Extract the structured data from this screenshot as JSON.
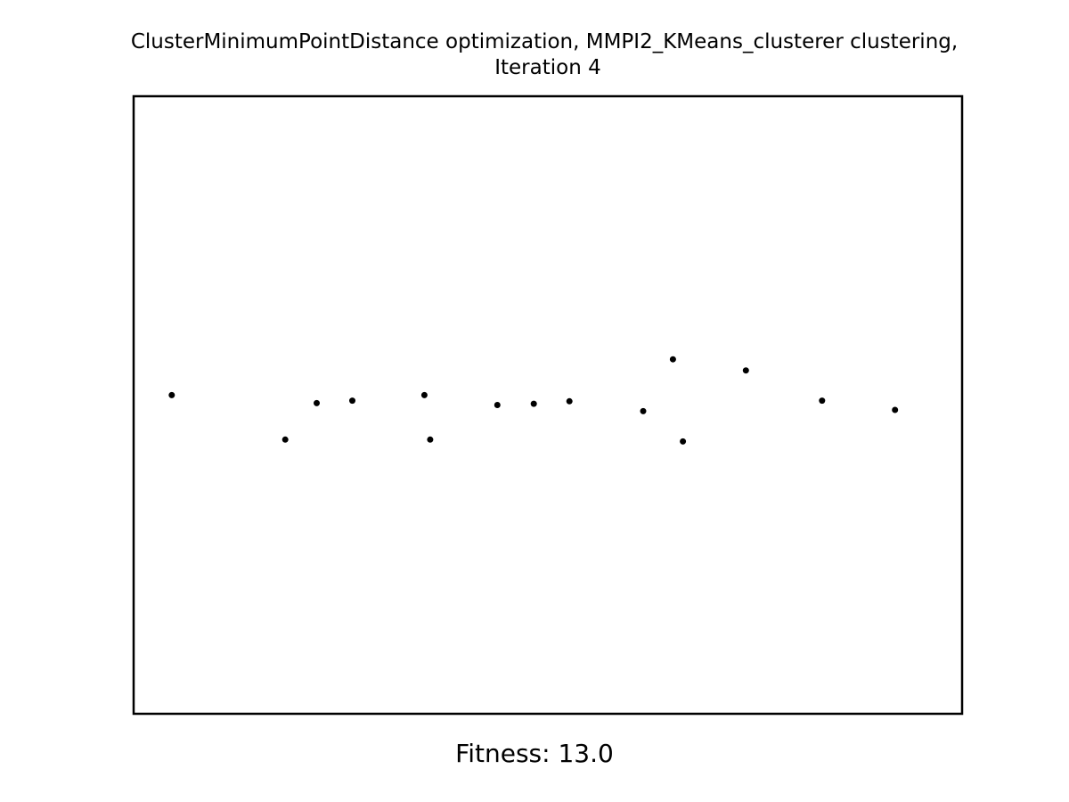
{
  "chart_data": {
    "type": "scatter",
    "title_lines": [
      "ClusterMinimumPointDistance optimization, MMPI2_KMeans_clusterer clustering,",
      "Iteration 4"
    ],
    "xlabel": "Fitness: 13.0",
    "ylabel": "",
    "xlim": [
      0,
      100
    ],
    "ylim": [
      0,
      100
    ],
    "grid": false,
    "ticks_visible": false,
    "point_color": "#000000",
    "series": [
      {
        "points": [
          {
            "x": 4.6,
            "y": 51.6
          },
          {
            "x": 18.3,
            "y": 44.4
          },
          {
            "x": 22.1,
            "y": 50.3
          },
          {
            "x": 26.4,
            "y": 50.7
          },
          {
            "x": 35.1,
            "y": 51.6
          },
          {
            "x": 35.8,
            "y": 44.4
          },
          {
            "x": 43.9,
            "y": 50.0
          },
          {
            "x": 48.3,
            "y": 50.2
          },
          {
            "x": 52.6,
            "y": 50.6
          },
          {
            "x": 61.5,
            "y": 49.0
          },
          {
            "x": 65.1,
            "y": 57.4
          },
          {
            "x": 66.3,
            "y": 44.1
          },
          {
            "x": 73.9,
            "y": 55.6
          },
          {
            "x": 83.1,
            "y": 50.7
          },
          {
            "x": 91.9,
            "y": 49.2
          }
        ]
      }
    ]
  }
}
